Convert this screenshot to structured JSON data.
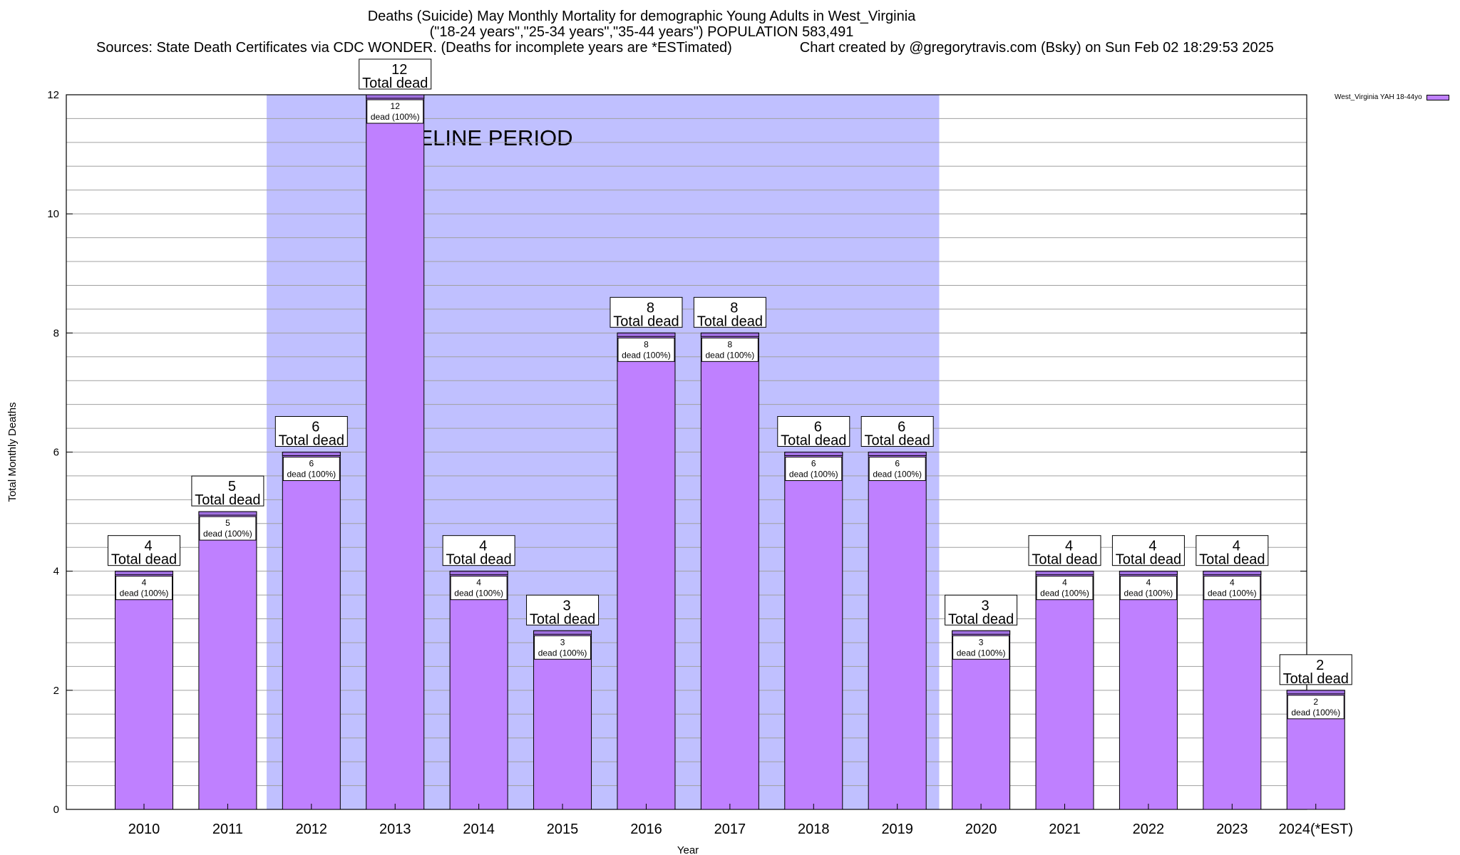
{
  "chart_data": {
    "type": "bar",
    "title": "Deaths (Suicide) May Monthly Mortality for demographic Young Adults in West_Virginia",
    "subtitle": "(\"18-24 years\",\"25-34 years\",\"35-44 years\") POPULATION 583,491",
    "sources": "Sources: State Death Certificates via CDC WONDER. (Deaths for incomplete years are *ESTimated)",
    "credit": "Chart created by @gregorytravis.com (Bsky) on Sun Feb 02 18:29:53 2025",
    "xlabel": "Year",
    "ylabel": "Total Monthly Deaths",
    "ylim": [
      0,
      12
    ],
    "yticks": [
      0,
      2,
      4,
      6,
      8,
      10,
      12
    ],
    "grid": true,
    "legend_position": "top-right",
    "categories": [
      "2010",
      "2011",
      "2012",
      "2013",
      "2014",
      "2015",
      "2016",
      "2017",
      "2018",
      "2019",
      "2020",
      "2021",
      "2022",
      "2023",
      "2024(*EST)"
    ],
    "series": [
      {
        "name": "West_Virginia YAH 18-44yo",
        "values": [
          4,
          5,
          6,
          12,
          4,
          3,
          8,
          8,
          6,
          6,
          3,
          4,
          4,
          4,
          2
        ]
      }
    ],
    "total_labels": [
      "4",
      "5",
      "6",
      "12",
      "4",
      "3",
      "8",
      "8",
      "6",
      "6",
      "3",
      "4",
      "4",
      "4",
      "2"
    ],
    "total_suffix": "Total dead",
    "inner_labels": [
      "4",
      "5",
      "6",
      "12",
      "4",
      "3",
      "8",
      "8",
      "6",
      "6",
      "3",
      "4",
      "4",
      "4",
      "2"
    ],
    "inner_suffix": "dead (100%)",
    "baseline": {
      "label": "BASELINE PERIOD",
      "from": "2012",
      "to": "2019"
    },
    "colors": {
      "bar": "#bf80ff",
      "bar_top": "#a070e0",
      "baseline_band": "#c0c0ff",
      "grid": "#a0a0a0",
      "axis": "#000000"
    }
  }
}
